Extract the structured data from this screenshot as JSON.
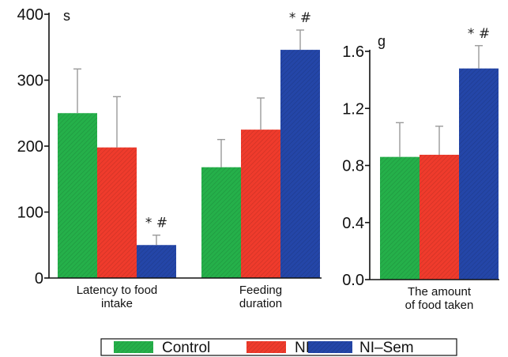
{
  "colors": {
    "Control": "#25b04a",
    "NI": "#ef3b2c",
    "NI-Sem": "#2446a8"
  },
  "legend": {
    "entries": [
      "Control",
      "NI",
      "NI–Sem"
    ],
    "placement": "bottom"
  },
  "chart_data": [
    {
      "type": "bar",
      "ylabel": "s",
      "ylim": [
        0,
        400
      ],
      "yticks": [
        "0",
        "100",
        "200",
        "300",
        "400"
      ],
      "ytick_values": [
        0,
        100,
        200,
        300,
        400
      ],
      "categories": [
        [
          "Latency to food",
          "intake"
        ],
        [
          "Feeding",
          "duration"
        ]
      ],
      "series": [
        {
          "name": "Control",
          "values": [
            250,
            168
          ],
          "errors": [
            67,
            42
          ]
        },
        {
          "name": "NI",
          "values": [
            198,
            225
          ],
          "errors": [
            77,
            48
          ]
        },
        {
          "name": "NI–Sem",
          "values": [
            50,
            346
          ],
          "errors": [
            15,
            30
          ]
        }
      ],
      "annotations": [
        {
          "category": 0,
          "series": 2,
          "text": "* #"
        },
        {
          "category": 1,
          "series": 2,
          "text": "* #"
        }
      ]
    },
    {
      "type": "bar",
      "ylabel": "g",
      "ylim": [
        0,
        1.6
      ],
      "yticks": [
        "0.0",
        "0.4",
        "0.8",
        "1.2",
        "1.6"
      ],
      "ytick_values": [
        0,
        0.4,
        0.8,
        1.2,
        1.6
      ],
      "categories": [
        [
          "The amount",
          "of food taken"
        ]
      ],
      "series": [
        {
          "name": "Control",
          "values": [
            0.86
          ],
          "errors": [
            0.24
          ]
        },
        {
          "name": "NI",
          "values": [
            0.875
          ],
          "errors": [
            0.2
          ]
        },
        {
          "name": "NI–Sem",
          "values": [
            1.48
          ],
          "errors": [
            0.16
          ]
        }
      ],
      "annotations": [
        {
          "category": 0,
          "series": 2,
          "text": "* #"
        }
      ]
    }
  ]
}
